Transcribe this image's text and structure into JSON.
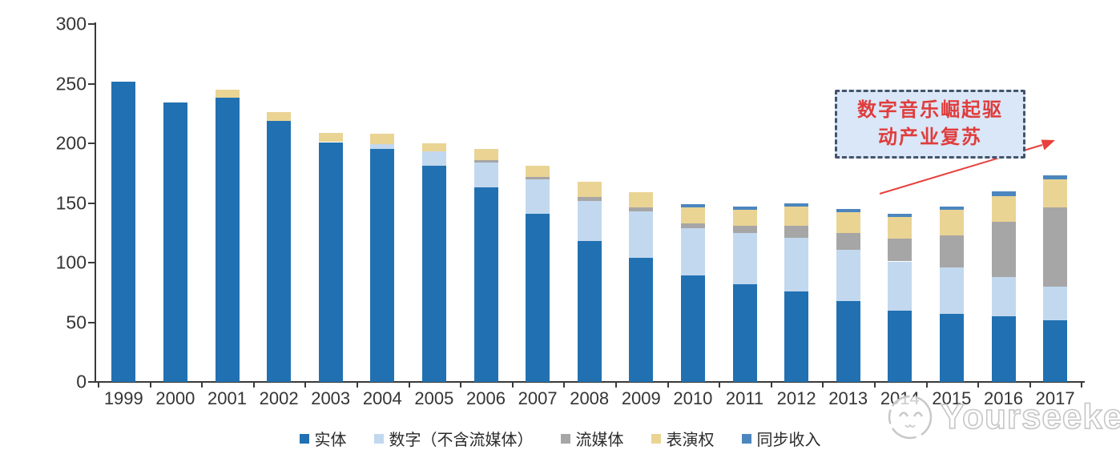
{
  "chart_data": {
    "type": "bar",
    "subtype": "stacked",
    "title": "",
    "xlabel": "",
    "ylabel": "",
    "ylim": [
      0,
      300
    ],
    "yticks": [
      0,
      50,
      100,
      150,
      200,
      250,
      300
    ],
    "grid": false,
    "legend_position": "bottom",
    "categories": [
      "1999",
      "2000",
      "2001",
      "2002",
      "2003",
      "2004",
      "2005",
      "2006",
      "2007",
      "2008",
      "2009",
      "2010",
      "2011",
      "2012",
      "2013",
      "2014",
      "2015",
      "2016",
      "2017"
    ],
    "series": [
      {
        "name": "实体",
        "color": "#2171b2",
        "values": [
          252,
          234,
          238,
          219,
          201,
          195,
          181,
          163,
          141,
          118,
          104,
          89,
          82,
          76,
          68,
          60,
          57,
          55,
          52
        ]
      },
      {
        "name": "数字（不含流媒体）",
        "color": "#c2d8ef",
        "values": [
          0,
          0,
          0,
          0,
          0,
          4,
          12,
          21,
          29,
          34,
          39,
          40,
          43,
          45,
          43,
          41,
          39,
          33,
          28
        ]
      },
      {
        "name": "流媒体",
        "color": "#a6a6a6",
        "values": [
          0,
          0,
          0,
          0,
          0,
          0,
          0,
          2,
          2,
          3,
          3,
          4,
          6,
          10,
          14,
          19,
          27,
          46,
          66
        ]
      },
      {
        "name": "表演权",
        "color": "#ead494",
        "values": [
          0,
          0,
          7,
          7,
          8,
          9,
          7,
          9,
          9,
          13,
          13,
          13,
          13,
          16,
          17,
          18,
          21,
          22,
          24
        ]
      },
      {
        "name": "同步收入",
        "color": "#4c86be",
        "values": [
          0,
          0,
          0,
          0,
          0,
          0,
          0,
          0,
          0,
          0,
          0,
          3,
          3,
          3,
          3,
          3,
          3,
          4,
          3
        ]
      }
    ]
  },
  "annotation": {
    "line1": "数字音乐崛起驱",
    "line2": "动产业复苏",
    "box_fill": "#d9e7f8",
    "border_color": "#44546a",
    "text_color": "#e03c3c",
    "arrow_color": "#e8403c"
  },
  "watermark": {
    "text": "Yourseeker"
  },
  "axis_color": "#3a3a3a"
}
